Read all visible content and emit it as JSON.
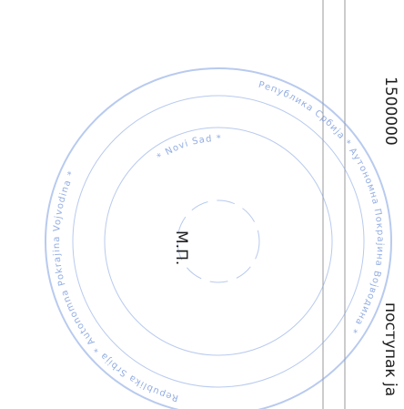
{
  "document": {
    "amount": "1500000",
    "seal_mark": "М.П.",
    "text_fragment": "поступак ја",
    "stamp": {
      "outer_left": "Republika Srbija * Autonomna Pokrajina Vojvodina *",
      "outer_right": "Република Србија * Аутономна Покрајина Војводина *",
      "city": "* Novi Sad *"
    }
  }
}
